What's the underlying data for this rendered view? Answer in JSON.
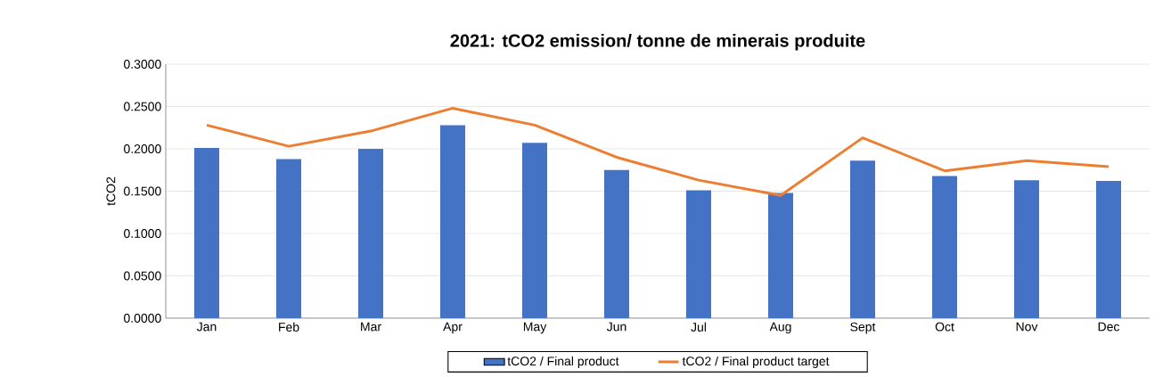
{
  "chart_data": {
    "type": "bar",
    "title": "2021: tCO2 emission/ tonne de minerais produite",
    "ylabel": "tCO2",
    "categories": [
      "Jan",
      "Feb",
      "Mar",
      "Apr",
      "May",
      "Jun",
      "Jul",
      "Aug",
      "Sept",
      "Oct",
      "Nov",
      "Dec"
    ],
    "series": [
      {
        "name": "tCO2 / Final product",
        "color": "#4472c4",
        "values": [
          0.201,
          0.188,
          0.2,
          0.228,
          0.207,
          0.175,
          0.151,
          0.148,
          0.186,
          0.168,
          0.163,
          0.162
        ]
      },
      {
        "name": "tCO2 / Final product target",
        "type": "line",
        "color": "#ed7d31",
        "marker": "none",
        "values": [
          0.228,
          0.203,
          0.221,
          0.248,
          0.228,
          0.19,
          0.163,
          0.145,
          0.213,
          0.174,
          0.186,
          0.179
        ]
      }
    ],
    "ylim": [
      0,
      0.3
    ],
    "yticks": [
      {
        "value": 0,
        "label": "0.0000"
      },
      {
        "value": 0.05,
        "label": "0.0500"
      },
      {
        "value": 0.1,
        "label": "0.1000"
      },
      {
        "value": 0.15,
        "label": "0.1500"
      },
      {
        "value": 0.2,
        "label": "0.2000"
      },
      {
        "value": 0.25,
        "label": "0.2500"
      },
      {
        "value": 0.3,
        "label": "0.3000"
      }
    ],
    "grid": "y",
    "legend": "bottom"
  }
}
